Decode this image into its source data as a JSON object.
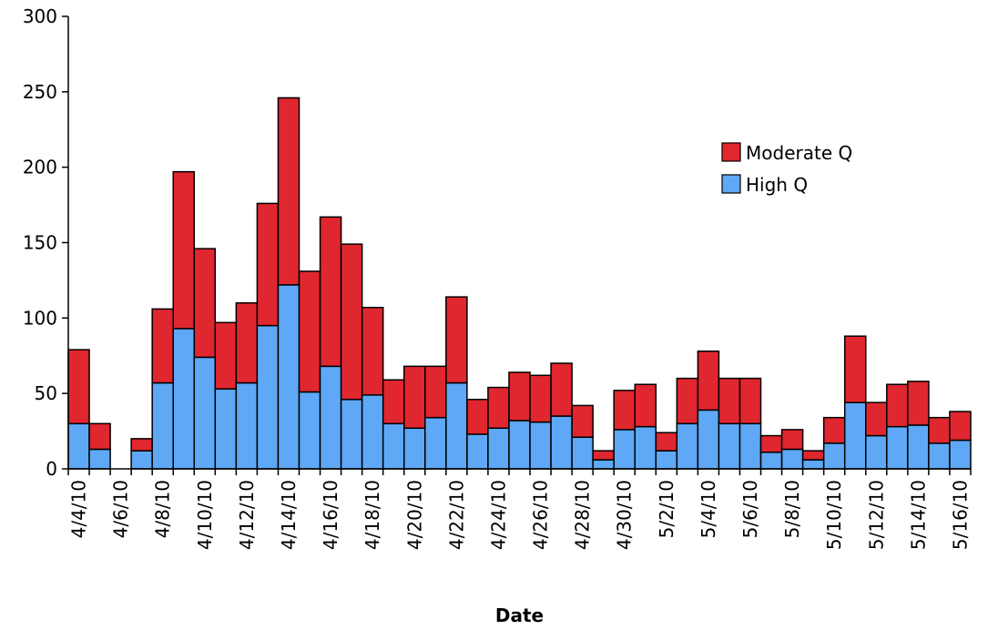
{
  "chart_data": {
    "type": "bar",
    "stacked": true,
    "xlabel": "Date",
    "ylabel": "",
    "ylim": [
      0,
      300
    ],
    "yticks": [
      0,
      50,
      100,
      150,
      200,
      250,
      300
    ],
    "grid": false,
    "legend_position": "right",
    "categories": [
      "4/4/10",
      "4/5/10",
      "4/6/10",
      "4/7/10",
      "4/8/10",
      "4/9/10",
      "4/10/10",
      "4/11/10",
      "4/12/10",
      "4/13/10",
      "4/14/10",
      "4/15/10",
      "4/16/10",
      "4/17/10",
      "4/18/10",
      "4/19/10",
      "4/20/10",
      "4/21/10",
      "4/22/10",
      "4/23/10",
      "4/24/10",
      "4/25/10",
      "4/26/10",
      "4/27/10",
      "4/28/10",
      "4/29/10",
      "4/30/10",
      "5/1/10",
      "5/2/10",
      "5/3/10",
      "5/4/10",
      "5/5/10",
      "5/6/10",
      "5/7/10",
      "5/8/10",
      "5/9/10",
      "5/10/10",
      "5/11/10",
      "5/12/10",
      "5/13/10",
      "5/14/10",
      "5/15/10",
      "5/16/10"
    ],
    "tick_labels": [
      "4/4/10",
      "",
      "4/6/10",
      "",
      "4/8/10",
      "",
      "4/10/10",
      "",
      "4/12/10",
      "",
      "4/14/10",
      "",
      "4/16/10",
      "",
      "4/18/10",
      "",
      "4/20/10",
      "",
      "4/22/10",
      "",
      "4/24/10",
      "",
      "4/26/10",
      "",
      "4/28/10",
      "",
      "4/30/10",
      "",
      "5/2/10",
      "",
      "5/4/10",
      "",
      "5/6/10",
      "",
      "5/8/10",
      "",
      "5/10/10",
      "",
      "5/12/10",
      "",
      "5/14/10",
      "",
      "5/16/10"
    ],
    "series": [
      {
        "name": "High Q",
        "color": "#5fa8f5",
        "values": [
          30,
          13,
          0,
          12,
          57,
          93,
          74,
          53,
          57,
          95,
          122,
          51,
          68,
          46,
          49,
          30,
          27,
          34,
          57,
          23,
          27,
          32,
          31,
          35,
          21,
          6,
          26,
          28,
          12,
          30,
          39,
          30,
          30,
          11,
          13,
          6,
          17,
          44,
          22,
          28,
          29,
          17,
          19
        ]
      },
      {
        "name": "Moderate Q",
        "color": "#e0262f",
        "values": [
          49,
          17,
          0,
          8,
          49,
          104,
          72,
          44,
          53,
          81,
          124,
          80,
          99,
          103,
          58,
          29,
          41,
          34,
          57,
          23,
          27,
          32,
          31,
          35,
          21,
          6,
          26,
          28,
          12,
          30,
          39,
          30,
          30,
          11,
          13,
          6,
          17,
          44,
          22,
          28,
          29,
          17,
          19
        ]
      }
    ],
    "legend": [
      {
        "label": "Moderate Q",
        "color": "#e0262f"
      },
      {
        "label": "High Q",
        "color": "#5fa8f5"
      }
    ]
  }
}
